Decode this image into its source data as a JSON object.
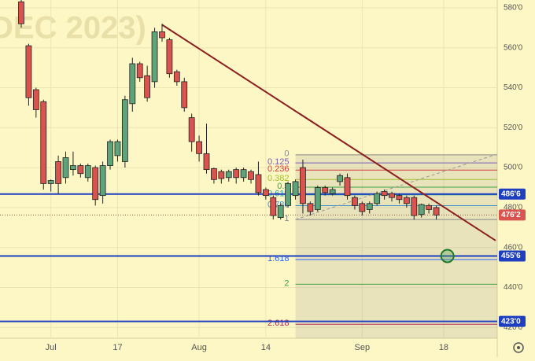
{
  "chart_data": {
    "type": "candlestick",
    "watermark": "DEC 2023)",
    "categories": [
      null,
      null,
      null,
      null,
      "Jul",
      null,
      null,
      null,
      null,
      null,
      null,
      null,
      null,
      "17",
      null,
      null,
      null,
      null,
      null,
      null,
      null,
      null,
      null,
      null,
      "Aug",
      null,
      null,
      null,
      null,
      null,
      null,
      null,
      null,
      "14",
      null,
      null,
      null,
      null,
      null,
      null,
      null,
      null,
      null,
      null,
      null,
      null,
      "Sep",
      null,
      null,
      null,
      null,
      null,
      null,
      null,
      null,
      null,
      null,
      "18",
      null,
      null,
      null,
      null,
      null,
      null,
      null
    ],
    "open": [
      583,
      561,
      539,
      533,
      492,
      503,
      495,
      499,
      501,
      495,
      500,
      486,
      501,
      506,
      503,
      532,
      552,
      546,
      543,
      568,
      564,
      548,
      543,
      525,
      513,
      507,
      499.5,
      498,
      495,
      499,
      495,
      498,
      496.5,
      489,
      485,
      475,
      481,
      486,
      500,
      482,
      479,
      490,
      487,
      493,
      495,
      485,
      482,
      479,
      482,
      488,
      487,
      486,
      485,
      485,
      476.5,
      481,
      480,
      null,
      null,
      null,
      null,
      null,
      null,
      null,
      null
    ],
    "high": [
      585,
      562,
      540,
      534,
      494,
      506,
      508,
      508,
      502,
      502,
      501,
      503,
      514,
      514,
      536,
      555,
      553,
      551,
      570,
      572,
      565,
      549,
      545,
      527,
      516,
      522,
      500,
      499,
      499,
      500,
      500,
      499,
      503,
      490,
      486,
      482,
      493,
      494,
      504,
      483,
      491,
      491,
      490,
      497,
      497,
      486,
      483,
      483,
      488,
      489,
      488,
      487,
      486,
      486,
      482,
      482,
      481,
      null,
      null,
      null,
      null,
      null,
      null,
      null,
      null
    ],
    "low": [
      570,
      531,
      525,
      489,
      488,
      487,
      492,
      496,
      495,
      493,
      481,
      482,
      499,
      503,
      500,
      528,
      543,
      533,
      540,
      563,
      545,
      541,
      528,
      508,
      503,
      497,
      492,
      492,
      493,
      492,
      493,
      492,
      486,
      484,
      474,
      474,
      480,
      484,
      477,
      476,
      478,
      486,
      486,
      491,
      484,
      479,
      476,
      477,
      481,
      484,
      483,
      482,
      480,
      474,
      475,
      477,
      474,
      null,
      null,
      null,
      null,
      null,
      null,
      null,
      null
    ],
    "close": [
      572,
      535,
      529,
      492,
      493.5,
      492,
      505,
      501,
      497,
      501,
      484,
      501,
      513,
      513,
      534,
      552,
      545,
      535,
      568,
      565,
      547,
      543,
      530,
      513,
      507,
      499,
      494,
      494.5,
      498,
      495,
      499,
      494,
      487.5,
      486,
      476,
      481,
      492,
      493,
      482,
      478,
      490,
      487.5,
      489,
      496,
      486,
      481,
      478,
      482,
      487,
      486,
      485,
      484,
      482,
      476,
      481.5,
      479,
      476.25,
      null,
      null,
      null,
      null,
      null,
      null,
      null,
      null
    ],
    "up_color": "#5fa37a",
    "down_color": "#d9544f",
    "ylim": [
      414.6,
      583.9
    ],
    "yticks": [
      {
        "value": 420,
        "label": "420'0"
      },
      {
        "value": 440,
        "label": "440'0"
      },
      {
        "value": 460,
        "label": "460'0"
      },
      {
        "value": 480,
        "label": "480'0"
      },
      {
        "value": 500,
        "label": "500'0"
      },
      {
        "value": 520,
        "label": "520'0"
      },
      {
        "value": 540,
        "label": "540'0"
      },
      {
        "value": 560,
        "label": "560'0"
      },
      {
        "value": 580,
        "label": "580'0"
      }
    ],
    "grid": true,
    "trendline": {
      "x": [
        19,
        64
      ],
      "y": [
        571.5,
        463.5
      ],
      "color": "#8b1f1f"
    },
    "channel": {
      "x": [
        37,
        64
      ],
      "y": [
        474,
        506.5
      ],
      "color": "#999999"
    },
    "fibonacci": {
      "start": 506.4,
      "end": 474,
      "from": 37,
      "levels": [
        {
          "ratio": 0,
          "color": "#888888"
        },
        {
          "ratio": 0.125,
          "color": "#7a5ab8"
        },
        {
          "ratio": 0.236,
          "color": "#d23c3c"
        },
        {
          "ratio": 0.382,
          "color": "#9fbf2f"
        },
        {
          "ratio": 0.5,
          "color": "#3ca03c"
        },
        {
          "ratio": 0.618,
          "color": "#2aa39a"
        },
        {
          "ratio": 0.786,
          "color": "#3c8ec8"
        },
        {
          "ratio": 1,
          "color": "#888888"
        },
        {
          "ratio": 1.618,
          "color": "#2962ff"
        },
        {
          "ratio": 2,
          "color": "#3ca03c"
        },
        {
          "ratio": 2.618,
          "color": "#b0285a"
        }
      ]
    },
    "hlines": [
      {
        "value": 486.75,
        "color": "#1e3fbf"
      },
      {
        "value": 455.75,
        "color": "#1e3fbf"
      },
      {
        "value": 423,
        "color": "#1e3fbf"
      }
    ],
    "price_labels": [
      {
        "value": 486.75,
        "label": "486'6",
        "color": "#1e3fbf"
      },
      {
        "value": 476.25,
        "label": "476'2",
        "color": "#d9544f"
      },
      {
        "value": 455.75,
        "label": "455'6",
        "color": "#1e3fbf"
      },
      {
        "value": 423,
        "label": "423'0",
        "color": "#1e3fbf"
      }
    ],
    "marker": {
      "x": 57.5,
      "y": 455.75,
      "color": "#1f7a2e"
    }
  }
}
